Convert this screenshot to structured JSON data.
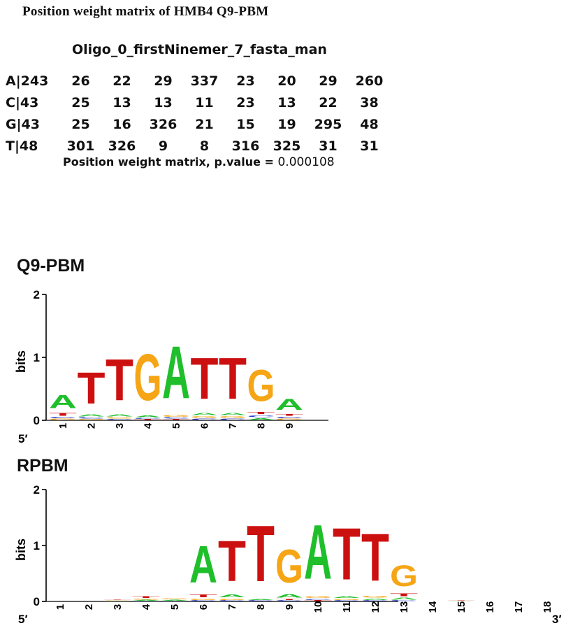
{
  "header": {
    "title": "Position weight matrix of HMB4 Q9-PBM"
  },
  "matrix": {
    "name": "Oligo_0_firstNinemer_7_fasta_man",
    "rows": [
      {
        "label": "A|243",
        "values": [
          "26",
          "22",
          "29",
          "337",
          "23",
          "20",
          "29",
          "260"
        ]
      },
      {
        "label": "C|43",
        "values": [
          "25",
          "13",
          "13",
          "11",
          "23",
          "13",
          "22",
          "38"
        ]
      },
      {
        "label": "G|43",
        "values": [
          "25",
          "16",
          "326",
          "21",
          "15",
          "19",
          "295",
          "48"
        ]
      },
      {
        "label": "T|48",
        "values": [
          "301",
          "326",
          "9",
          "8",
          "316",
          "325",
          "31",
          "31"
        ]
      }
    ],
    "footer_label": "Position weight matrix, p.value = ",
    "footer_value": "0.000108"
  },
  "colors": {
    "A": "#1fbf2b",
    "C": "#2a3cc9",
    "G": "#f5a515",
    "T": "#cc1010",
    "axis": "#000000"
  },
  "chart_data": [
    {
      "type": "sequence-logo",
      "title": "Q9-PBM",
      "ylabel": "bits",
      "ylim": [
        0,
        2
      ],
      "yticks": [
        "0",
        "1",
        "2"
      ],
      "end_labels": [
        "5′",
        ""
      ],
      "positions": [
        {
          "x": "1",
          "letters": [
            [
              "G",
              0.03
            ],
            [
              "C",
              0.03
            ],
            [
              "T",
              0.07
            ],
            [
              "A",
              0.33
            ]
          ]
        },
        {
          "x": "2",
          "letters": [
            [
              "G",
              0.02
            ],
            [
              "C",
              0.03
            ],
            [
              "A",
              0.06
            ],
            [
              "T",
              0.8
            ]
          ]
        },
        {
          "x": "3",
          "letters": [
            [
              "C",
              0.02
            ],
            [
              "G",
              0.03
            ],
            [
              "A",
              0.06
            ],
            [
              "T",
              1.05
            ]
          ]
        },
        {
          "x": "4",
          "letters": [
            [
              "T",
              0.02
            ],
            [
              "C",
              0.02
            ],
            [
              "A",
              0.05
            ],
            [
              "G",
              1.18
            ]
          ]
        },
        {
          "x": "5",
          "letters": [
            [
              "T",
              0.02
            ],
            [
              "C",
              0.03
            ],
            [
              "G",
              0.04
            ],
            [
              "A",
              1.33
            ]
          ]
        },
        {
          "x": "6",
          "letters": [
            [
              "C",
              0.03
            ],
            [
              "G",
              0.04
            ],
            [
              "A",
              0.06
            ],
            [
              "T",
              1.05
            ]
          ]
        },
        {
          "x": "7",
          "letters": [
            [
              "C",
              0.03
            ],
            [
              "G",
              0.04
            ],
            [
              "A",
              0.06
            ],
            [
              "T",
              1.05
            ]
          ]
        },
        {
          "x": "8",
          "letters": [
            [
              "A",
              0.04
            ],
            [
              "C",
              0.05
            ],
            [
              "T",
              0.06
            ],
            [
              "G",
              0.8
            ]
          ]
        },
        {
          "x": "9",
          "letters": [
            [
              "G",
              0.03
            ],
            [
              "C",
              0.03
            ],
            [
              "T",
              0.05
            ],
            [
              "A",
              0.28
            ]
          ]
        }
      ]
    },
    {
      "type": "sequence-logo",
      "title": "RPBM",
      "ylabel": "bits",
      "ylim": [
        0,
        2
      ],
      "yticks": [
        "0",
        "1",
        "2"
      ],
      "end_labels": [
        "5′",
        "3′"
      ],
      "positions": [
        {
          "x": "1",
          "letters": []
        },
        {
          "x": "2",
          "letters": []
        },
        {
          "x": "3",
          "letters": [
            [
              "A",
              0.01
            ],
            [
              "G",
              0.01
            ],
            [
              "T",
              0.01
            ]
          ]
        },
        {
          "x": "4",
          "letters": [
            [
              "C",
              0.01
            ],
            [
              "A",
              0.02
            ],
            [
              "G",
              0.02
            ],
            [
              "T",
              0.05
            ]
          ]
        },
        {
          "x": "5",
          "letters": [
            [
              "C",
              0.01
            ],
            [
              "A",
              0.02
            ],
            [
              "G",
              0.03
            ]
          ]
        },
        {
          "x": "6",
          "letters": [
            [
              "C",
              0.02
            ],
            [
              "G",
              0.04
            ],
            [
              "T",
              0.08
            ],
            [
              "A",
              1.05
            ]
          ]
        },
        {
          "x": "7",
          "letters": [
            [
              "C",
              0.02
            ],
            [
              "G",
              0.04
            ],
            [
              "A",
              0.08
            ],
            [
              "T",
              1.15
            ]
          ]
        },
        {
          "x": "8",
          "letters": [
            [
              "C",
              0.02
            ],
            [
              "A",
              0.03
            ],
            [
              "T",
              1.6
            ]
          ]
        },
        {
          "x": "9",
          "letters": [
            [
              "C",
              0.02
            ],
            [
              "T",
              0.03
            ],
            [
              "A",
              0.1
            ],
            [
              "G",
              0.95
            ]
          ]
        },
        {
          "x": "10",
          "letters": [
            [
              "T",
              0.02
            ],
            [
              "C",
              0.03
            ],
            [
              "G",
              0.05
            ],
            [
              "A",
              1.55
            ]
          ]
        },
        {
          "x": "11",
          "letters": [
            [
              "C",
              0.02
            ],
            [
              "G",
              0.03
            ],
            [
              "A",
              0.05
            ],
            [
              "T",
              1.48
            ]
          ]
        },
        {
          "x": "12",
          "letters": [
            [
              "C",
              0.02
            ],
            [
              "A",
              0.04
            ],
            [
              "G",
              0.05
            ],
            [
              "T",
              1.35
            ]
          ]
        },
        {
          "x": "13",
          "letters": [
            [
              "C",
              0.02
            ],
            [
              "A",
              0.06
            ],
            [
              "T",
              0.08
            ],
            [
              "G",
              0.6
            ]
          ]
        },
        {
          "x": "14",
          "letters": []
        },
        {
          "x": "15",
          "letters": [
            [
              "A",
              0.01
            ],
            [
              "T",
              0.01
            ]
          ]
        },
        {
          "x": "16",
          "letters": []
        },
        {
          "x": "17",
          "letters": []
        },
        {
          "x": "18",
          "letters": []
        }
      ]
    }
  ]
}
